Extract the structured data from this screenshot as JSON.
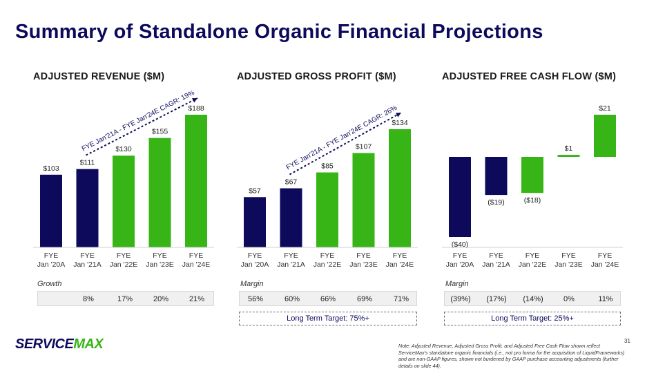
{
  "title": "Summary of Standalone Organic Financial Projections",
  "colors": {
    "navy": "#0d0a5c",
    "green": "#37b516"
  },
  "chart_data": [
    {
      "type": "bar",
      "title": "ADJUSTED REVENUE ($M)",
      "categories": [
        "FYE Jan '20A",
        "FYE Jan '21A",
        "FYE Jan '22E",
        "FYE Jan '23E",
        "FYE Jan '24E"
      ],
      "values": [
        103,
        111,
        130,
        155,
        188
      ],
      "value_labels": [
        "$103",
        "$111",
        "$130",
        "$155",
        "$188"
      ],
      "bar_status": [
        "actual",
        "actual",
        "estimate",
        "estimate",
        "estimate"
      ],
      "ylim": [
        0,
        200
      ],
      "annotation": "FYE Jan'21A - FYE Jan'24E CAGR: 19%",
      "metric_label": "Growth",
      "metric_values": [
        "",
        "8%",
        "17%",
        "20%",
        "21%"
      ],
      "target": ""
    },
    {
      "type": "bar",
      "title": "ADJUSTED GROSS PROFIT ($M)",
      "categories": [
        "FYE Jan '20A",
        "FYE Jan '21A",
        "FYE Jan '22E",
        "FYE Jan '23E",
        "FYE Jan '24E"
      ],
      "values": [
        57,
        67,
        85,
        107,
        134
      ],
      "value_labels": [
        "$57",
        "$67",
        "$85",
        "$107",
        "$134"
      ],
      "bar_status": [
        "actual",
        "actual",
        "estimate",
        "estimate",
        "estimate"
      ],
      "ylim": [
        0,
        142
      ],
      "annotation": "FYE Jan'21A - FYE Jan'24E CAGR: 26%",
      "metric_label": "Margin",
      "metric_values": [
        "56%",
        "60%",
        "66%",
        "69%",
        "71%"
      ],
      "target": "Long Term Target: 75%+"
    },
    {
      "type": "bar",
      "title": "ADJUSTED FREE CASH FLOW ($M)",
      "categories": [
        "FYE Jan '20A",
        "FYE Jan '21A",
        "FYE Jan '22E",
        "FYE Jan '23E",
        "FYE Jan '24E"
      ],
      "values": [
        -40,
        -19,
        -18,
        1,
        21
      ],
      "value_labels": [
        "($40)",
        "($19)",
        "($18)",
        "$1",
        "$21"
      ],
      "bar_status": [
        "actual",
        "actual",
        "estimate",
        "estimate",
        "estimate"
      ],
      "ylim": [
        -40,
        21
      ],
      "annotation": "",
      "metric_label": "Margin",
      "metric_values": [
        "(39%)",
        "(17%)",
        "(14%)",
        "0%",
        "11%"
      ],
      "target": "Long Term Target: 25%+"
    }
  ],
  "logo": {
    "part1": "SERVICE",
    "part2": "MAX"
  },
  "page_number": "31",
  "footnote": "Note: Adjusted Revenue, Adjusted Gross Profit, and Adjusted Free Cash Flow shown reflect ServiceMax's standalone organic financials (i.e., not pro forma for the acquisition of LiquidFrameworks) and are non-GAAP figures, shown not burdened by GAAP purchase accounting adjustments (further details on slide 44)."
}
